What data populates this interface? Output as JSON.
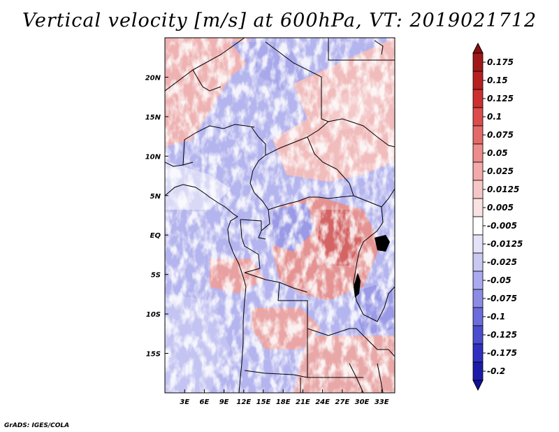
{
  "title": "Vertical velocity [m/s] at 600hPa, VT: 2019021712",
  "credit": "GrADS: IGES/COLA",
  "map": {
    "lon_range": [
      0,
      35
    ],
    "lat_range": [
      -20,
      25
    ],
    "x_ticks": [
      {
        "value": 3,
        "label": "3E"
      },
      {
        "value": 6,
        "label": "6E"
      },
      {
        "value": 9,
        "label": "9E"
      },
      {
        "value": 12,
        "label": "12E"
      },
      {
        "value": 15,
        "label": "15E"
      },
      {
        "value": 18,
        "label": "18E"
      },
      {
        "value": 21,
        "label": "21E"
      },
      {
        "value": 24,
        "label": "24E"
      },
      {
        "value": 27,
        "label": "27E"
      },
      {
        "value": 30,
        "label": "30E"
      },
      {
        "value": 33,
        "label": "33E"
      }
    ],
    "y_ticks": [
      {
        "value": 20,
        "label": "20N"
      },
      {
        "value": 15,
        "label": "15N"
      },
      {
        "value": 10,
        "label": "10N"
      },
      {
        "value": 5,
        "label": "5N"
      },
      {
        "value": 0,
        "label": "EQ"
      },
      {
        "value": -5,
        "label": "5S"
      },
      {
        "value": -10,
        "label": "10S"
      },
      {
        "value": -15,
        "label": "15S"
      }
    ]
  },
  "colorbar": {
    "levels": [
      {
        "label": "0.175",
        "color": "#a01818"
      },
      {
        "label": "0.15",
        "color": "#b82020"
      },
      {
        "label": "0.125",
        "color": "#cc3030"
      },
      {
        "label": "0.1",
        "color": "#dc4c4c"
      },
      {
        "label": "0.075",
        "color": "#e46a6a"
      },
      {
        "label": "0.05",
        "color": "#ec8c8c"
      },
      {
        "label": "0.025",
        "color": "#f2aaaa"
      },
      {
        "label": "0.0125",
        "color": "#f6c6c6"
      },
      {
        "label": "0.005",
        "color": "#fae2e2"
      },
      {
        "label": "-0.005",
        "color": "#ffffff"
      },
      {
        "label": "-0.0125",
        "color": "#e2e2f8"
      },
      {
        "label": "-0.025",
        "color": "#c8c8f2"
      },
      {
        "label": "-0.05",
        "color": "#aaaaee"
      },
      {
        "label": "-0.075",
        "color": "#8c8ce6"
      },
      {
        "label": "-0.1",
        "color": "#6c6cdc"
      },
      {
        "label": "-0.125",
        "color": "#4c4cd0"
      },
      {
        "label": "-0.175",
        "color": "#3030c0"
      },
      {
        "label": "-0.2",
        "color": "#1c1ca8"
      }
    ],
    "top_color": "#8a1010",
    "bottom_color": "#1010a0"
  }
}
